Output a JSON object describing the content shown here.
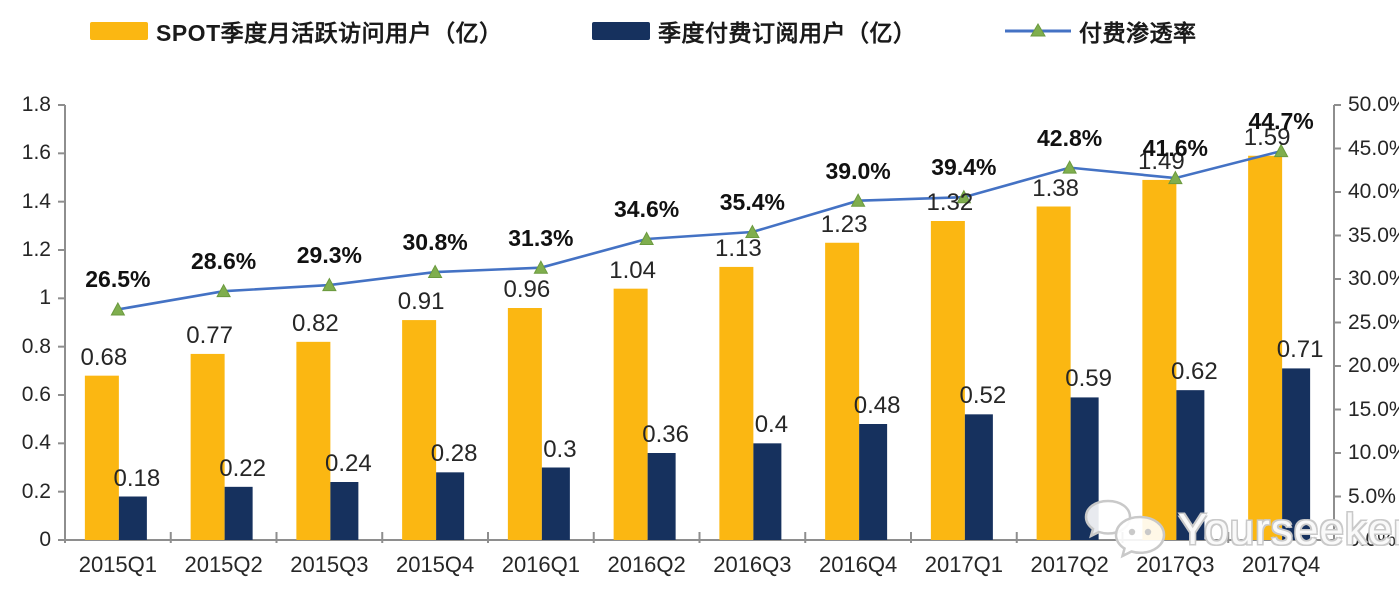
{
  "legend": {
    "items": [
      {
        "label": "SPOT季度月活跃访问用户（亿）",
        "swatch": "bar",
        "color": "#FBB712"
      },
      {
        "label": "季度付费订阅用户（亿）",
        "swatch": "bar",
        "color": "#16315E"
      },
      {
        "label": "付费渗透率",
        "swatch": "line",
        "color": "#4472C4",
        "marker_color": "#7FAE4E"
      }
    ]
  },
  "watermark": {
    "text": "Yourseeker"
  },
  "chart_data": {
    "type": "bar",
    "subtype": "grouped bars with secondary-axis line",
    "categories": [
      "2015Q1",
      "2015Q2",
      "2015Q3",
      "2015Q4",
      "2016Q1",
      "2016Q2",
      "2016Q3",
      "2016Q4",
      "2017Q1",
      "2017Q2",
      "2017Q3",
      "2017Q4"
    ],
    "series": [
      {
        "name": "SPOT季度月活跃访问用户（亿）",
        "type": "bar",
        "axis": "left",
        "color": "#FBB712",
        "values": [
          0.68,
          0.77,
          0.82,
          0.91,
          0.96,
          1.04,
          1.13,
          1.23,
          1.32,
          1.38,
          1.49,
          1.59
        ],
        "labels": [
          "0.68",
          "0.77",
          "0.82",
          "0.91",
          "0.96",
          "1.04",
          "1.13",
          "1.23",
          "1.32",
          "1.38",
          "1.49",
          "1.59"
        ]
      },
      {
        "name": "季度付费订阅用户（亿）",
        "type": "bar",
        "axis": "left",
        "color": "#16315E",
        "values": [
          0.18,
          0.22,
          0.24,
          0.28,
          0.3,
          0.36,
          0.4,
          0.48,
          0.52,
          0.59,
          0.62,
          0.71
        ],
        "labels": [
          "0.18",
          "0.22",
          "0.24",
          "0.28",
          "0.3",
          "0.36",
          "0.4",
          "0.48",
          "0.52",
          "0.59",
          "0.62",
          "0.71"
        ]
      },
      {
        "name": "付费渗透率",
        "type": "line",
        "axis": "right",
        "color": "#4472C4",
        "marker": "triangle",
        "marker_color": "#7FAE4E",
        "values": [
          26.5,
          28.6,
          29.3,
          30.8,
          31.3,
          34.6,
          35.4,
          39.0,
          39.4,
          42.8,
          41.6,
          44.7
        ],
        "labels": [
          "26.5%",
          "28.6%",
          "29.3%",
          "30.8%",
          "31.3%",
          "34.6%",
          "35.4%",
          "39.0%",
          "39.4%",
          "42.8%",
          "41.6%",
          "44.7%"
        ]
      }
    ],
    "left_axis": {
      "min": 0,
      "max": 1.8,
      "tick_labels": [
        "0",
        "0.2",
        "0.4",
        "0.6",
        "0.8",
        "1",
        "1.2",
        "1.4",
        "1.6",
        "1.8"
      ]
    },
    "right_axis": {
      "min": 0,
      "max": 50,
      "tick_labels": [
        "0.0%",
        "5.0%",
        "10.0%",
        "15.0%",
        "20.0%",
        "25.0%",
        "30.0%",
        "35.0%",
        "40.0%",
        "45.0%",
        "50.0%"
      ]
    },
    "grid": false,
    "legend_position": "top",
    "title": ""
  }
}
